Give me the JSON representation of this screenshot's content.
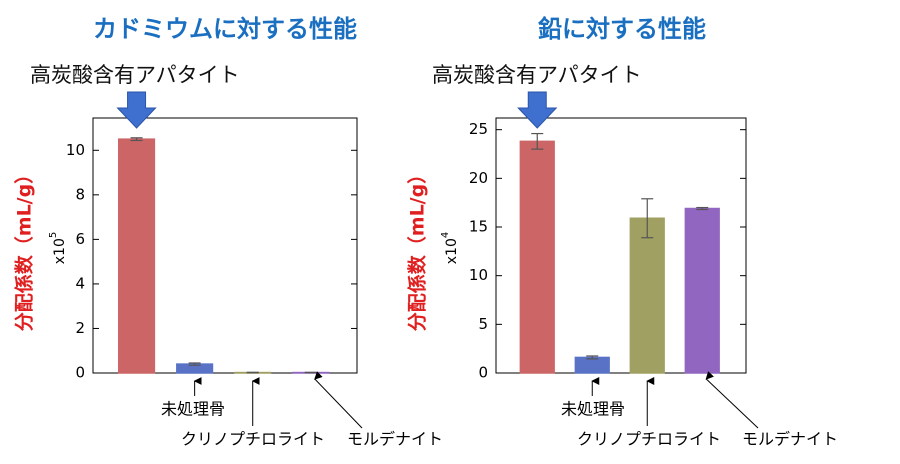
{
  "chart_data": [
    {
      "type": "bar",
      "title": "カドミウムに対する性能",
      "annotation": "高炭酸含有アパタイト",
      "y_label": "分配係数（mL/g）",
      "scale_label": "x10",
      "scale_exponent": 5,
      "categories": [
        null,
        "未処理骨",
        "クリノプチロライト",
        "モルデナイト"
      ],
      "values": [
        10.5,
        0.4,
        0.02,
        0.02
      ],
      "errors": [
        0.06,
        0.05,
        0.01,
        0.01
      ],
      "colors": [
        "#ff7f7f",
        "#6f8ff7",
        "#c8c87a",
        "#b57ff0"
      ],
      "ylim": [
        0,
        11.45
      ],
      "yticks": [
        0,
        2,
        4,
        6,
        8,
        10
      ]
    },
    {
      "type": "bar",
      "title": "鉛に対する性能",
      "annotation": "高炭酸含有アパタイト",
      "y_label": "分配係数（mL/g）",
      "scale_label": "x10",
      "scale_exponent": 4,
      "categories": [
        null,
        "未処理骨",
        "クリノプチロライト",
        "モルデナイト"
      ],
      "values": [
        23.8,
        1.6,
        15.9,
        16.9
      ],
      "errors": [
        0.8,
        0.15,
        2.0,
        0.1
      ],
      "colors": [
        "#ff7f7f",
        "#6f8ff7",
        "#c8c87a",
        "#b57ff0"
      ],
      "ylim": [
        0,
        26.2
      ],
      "yticks": [
        0,
        5,
        10,
        15,
        20,
        25
      ]
    }
  ]
}
